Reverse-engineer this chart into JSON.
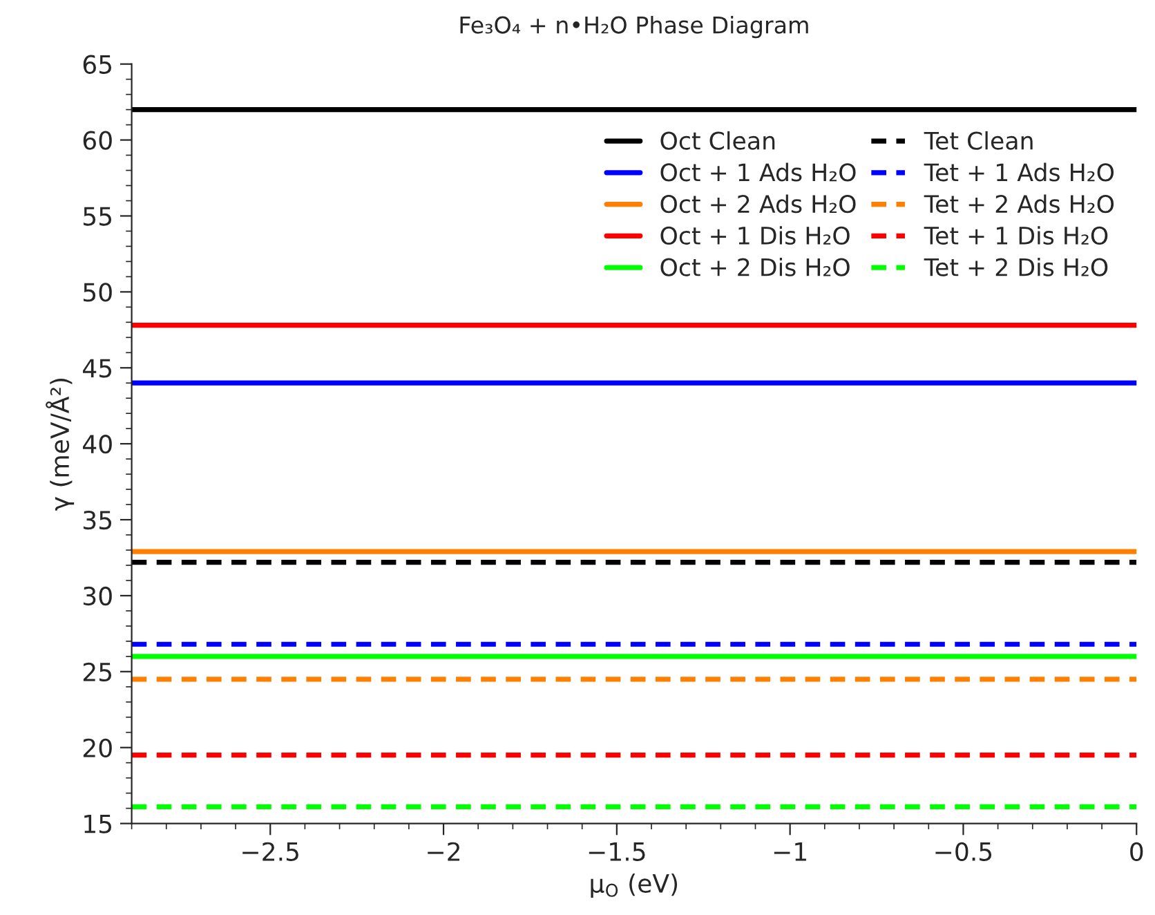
{
  "chart_data": {
    "type": "line",
    "title": "Fe₃O₄ + n•H₂O Phase Diagram",
    "xlabel": "μ$_{O}$ (eV)",
    "ylabel": "γ (meV/Å²)",
    "x": [
      -2.9,
      0
    ],
    "series": [
      {
        "name": "Oct Clean",
        "color": "#000000",
        "line_style": "solid",
        "values": [
          62,
          62
        ]
      },
      {
        "name": "Oct + 1 Ads H₂O",
        "color": "#0000ff",
        "line_style": "solid",
        "values": [
          44,
          44
        ]
      },
      {
        "name": "Oct + 2 Ads H₂O",
        "color": "#ff8000",
        "line_style": "solid",
        "values": [
          32.9,
          32.9
        ]
      },
      {
        "name": "Oct + 1 Dis H₂O",
        "color": "#ff0000",
        "line_style": "solid",
        "values": [
          47.8,
          47.8
        ]
      },
      {
        "name": "Oct + 2 Dis H₂O",
        "color": "#00ff00",
        "line_style": "solid",
        "values": [
          26,
          26
        ]
      },
      {
        "name": "Tet Clean",
        "color": "#000000",
        "line_style": "dashed",
        "values": [
          32.2,
          32.2
        ]
      },
      {
        "name": "Tet + 1 Ads H₂O",
        "color": "#0000ff",
        "line_style": "dashed",
        "values": [
          26.8,
          26.8
        ]
      },
      {
        "name": "Tet + 2 Ads H₂O",
        "color": "#ff8000",
        "line_style": "dashed",
        "values": [
          24.5,
          24.5
        ]
      },
      {
        "name": "Tet + 1 Dis H₂O",
        "color": "#ff0000",
        "line_style": "dashed",
        "values": [
          19.5,
          19.5
        ]
      },
      {
        "name": "Tet + 2 Dis H₂O",
        "color": "#00ff00",
        "line_style": "dashed",
        "values": [
          16.1,
          16.1
        ]
      }
    ],
    "xlim": [
      -2.9,
      0
    ],
    "xticks": [
      -2.5,
      -2,
      -1.5,
      -1,
      -0.5,
      0
    ],
    "ylim": [
      15,
      65
    ],
    "yticks": [
      15,
      20,
      25,
      30,
      35,
      40,
      45,
      50,
      55,
      60,
      65
    ],
    "grid": false,
    "legend": "top right",
    "marker": "none"
  }
}
